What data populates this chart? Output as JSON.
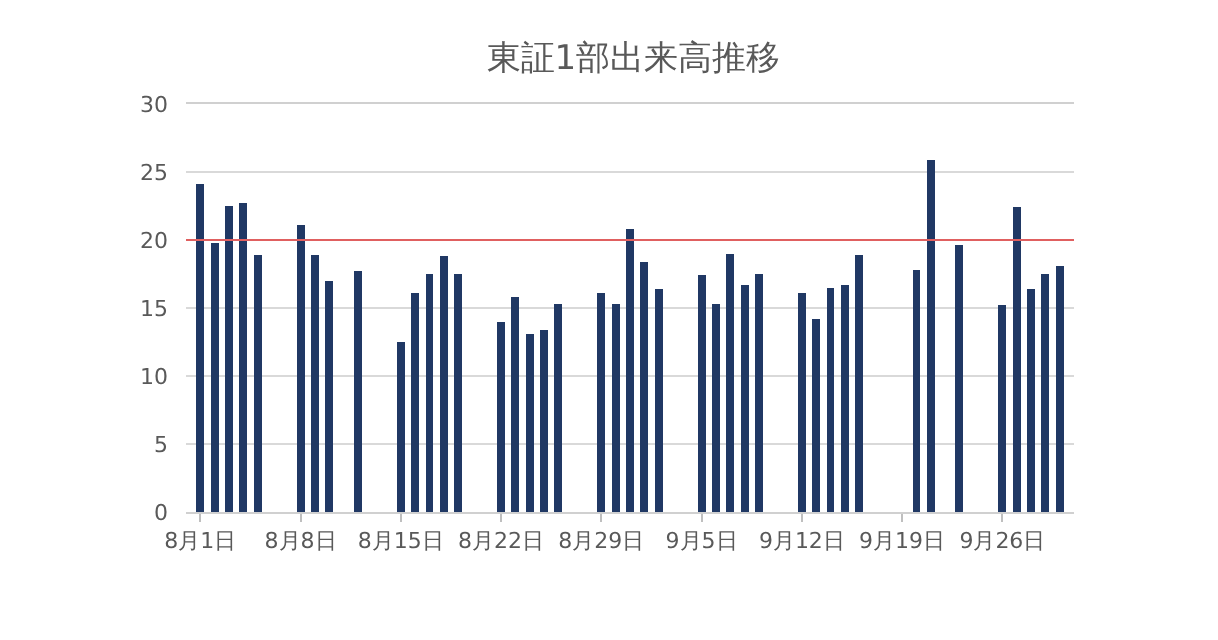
{
  "chart_data": {
    "type": "bar",
    "title": "東証1部出来高推移",
    "x": [
      "--08-01",
      "--08-02",
      "--08-03",
      "--08-04",
      "--08-05",
      "--08-08",
      "--08-09",
      "--08-10",
      "--08-12",
      "--08-15",
      "--08-16",
      "--08-17",
      "--08-18",
      "--08-19",
      "--08-22",
      "--08-23",
      "--08-24",
      "--08-25",
      "--08-26",
      "--08-29",
      "--08-30",
      "--08-31",
      "--09-01",
      "--09-02",
      "--09-05",
      "--09-06",
      "--09-07",
      "--09-08",
      "--09-09",
      "--09-12",
      "--09-13",
      "--09-14",
      "--09-15",
      "--09-16",
      "--09-20",
      "--09-21",
      "--09-23",
      "--09-26",
      "--09-27",
      "--09-28",
      "--09-29",
      "--09-30"
    ],
    "values": [
      24.1,
      19.8,
      22.5,
      22.7,
      18.9,
      21.1,
      18.9,
      17.0,
      17.7,
      12.5,
      16.1,
      17.5,
      18.8,
      17.5,
      14.0,
      15.8,
      13.1,
      13.4,
      15.3,
      16.1,
      15.3,
      20.8,
      18.4,
      16.4,
      17.4,
      15.3,
      19.0,
      16.7,
      17.5,
      16.1,
      14.2,
      16.5,
      16.7,
      18.9,
      17.8,
      25.9,
      19.6,
      15.2,
      22.4,
      16.4,
      17.5,
      18.1
    ],
    "color": "#203864",
    "xlim": [
      "--07-31",
      "--10-01"
    ],
    "xticks": [
      {
        "value": "--08-01",
        "label": "8月1日"
      },
      {
        "value": "--08-08",
        "label": "8月8日"
      },
      {
        "value": "--08-15",
        "label": "8月15日"
      },
      {
        "value": "--08-22",
        "label": "8月22日"
      },
      {
        "value": "--08-29",
        "label": "8月29日"
      },
      {
        "value": "--09-05",
        "label": "9月5日"
      },
      {
        "value": "--09-12",
        "label": "9月12日"
      },
      {
        "value": "--09-19",
        "label": "9月19日"
      },
      {
        "value": "--09-26",
        "label": "9月26日"
      }
    ],
    "ylim": [
      0,
      30
    ],
    "yticks": [
      0,
      5,
      10,
      15,
      20,
      25,
      30
    ],
    "grid": "y",
    "ref_lines": [
      {
        "axis": "y",
        "value": 20,
        "color": "#e06060"
      }
    ]
  }
}
